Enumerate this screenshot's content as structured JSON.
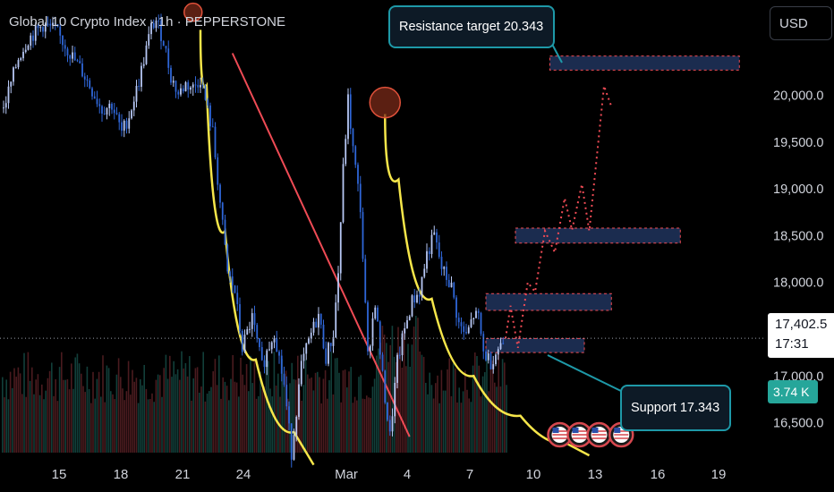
{
  "header": {
    "title": "Global 10 Crypto Index · 1h · PEPPERSTONE"
  },
  "toolbar": {
    "currency": "USD"
  },
  "price_tag": {
    "price": "17,402.5",
    "countdown": "17:31"
  },
  "volume_tag": {
    "value": "3.74 K"
  },
  "annotations": {
    "resistance": "Resistance target 20.343",
    "support": "Support 17.343"
  },
  "colors": {
    "background": "#000000",
    "candle_up": "#b7c8f5",
    "candle_down": "#2f66d8",
    "volume_up": "#123f3a",
    "volume_down": "#4a1b1f",
    "fit_curve": "#f6e64a",
    "trend_line": "#ef4b55",
    "zone_fill": "#1b2c4f",
    "zone_border": "#ef4b55",
    "callout_border": "#1e99a8",
    "volume_badge": "#26a69a"
  },
  "chart_data": {
    "type": "line",
    "title": "Global 10 Crypto Index · 1h · PEPPERSTONE",
    "x_ticks": [
      "15",
      "18",
      "21",
      "24",
      "Mar",
      "4",
      "7",
      "10",
      "13",
      "16",
      "19"
    ],
    "y_ticks": [
      "16,500.0",
      "17,000.0",
      "17,500.0",
      "18,000.0",
      "18,500.0",
      "19,000.0",
      "19,500.0",
      "20,000.0"
    ],
    "ylim": [
      16180,
      21000
    ],
    "last_price": 17402.5,
    "series": [
      {
        "values": [
          [
            0,
            19860
          ],
          [
            6,
            20400
          ],
          [
            10,
            20600
          ],
          [
            16,
            20750
          ],
          [
            21,
            20700
          ],
          [
            27,
            20450
          ],
          [
            32,
            20250
          ],
          [
            36,
            20050
          ],
          [
            40,
            19850
          ],
          [
            44,
            19900
          ],
          [
            48,
            19600
          ],
          [
            51,
            19780
          ],
          [
            55,
            20150
          ],
          [
            58,
            20500
          ],
          [
            60,
            20720
          ],
          [
            62,
            20800
          ],
          [
            65,
            20580
          ],
          [
            68,
            20200
          ],
          [
            71,
            20010
          ],
          [
            74,
            20120
          ],
          [
            77,
            20080
          ],
          [
            80,
            20180
          ],
          [
            85,
            19600
          ],
          [
            91,
            18100
          ],
          [
            94,
            17900
          ],
          [
            97,
            17300
          ],
          [
            101,
            17620
          ],
          [
            105,
            17100
          ],
          [
            110,
            17480
          ],
          [
            114,
            16900
          ],
          [
            117,
            16180
          ],
          [
            121,
            17100
          ],
          [
            125,
            17450
          ],
          [
            128,
            17650
          ],
          [
            131,
            17200
          ],
          [
            134,
            17450
          ],
          [
            136,
            18100
          ],
          [
            138,
            19200
          ],
          [
            140,
            19950
          ],
          [
            142,
            19420
          ],
          [
            145,
            18800
          ],
          [
            148,
            17200
          ],
          [
            151,
            17800
          ],
          [
            154,
            16980
          ],
          [
            157,
            16350
          ],
          [
            160,
            17150
          ],
          [
            163,
            17500
          ],
          [
            166,
            17800
          ],
          [
            169,
            17900
          ],
          [
            172,
            18300
          ],
          [
            175,
            18500
          ],
          [
            178,
            18150
          ],
          [
            182,
            17950
          ],
          [
            185,
            17550
          ],
          [
            188,
            17420
          ],
          [
            191,
            17650
          ],
          [
            193,
            17620
          ],
          [
            195,
            17250
          ],
          [
            198,
            17150
          ],
          [
            201,
            17300
          ],
          [
            204,
            17402
          ]
        ]
      }
    ],
    "projection_path": [
      [
        204,
        17402
      ],
      [
        206,
        17750
      ],
      [
        209,
        17300
      ],
      [
        213,
        18000
      ],
      [
        216,
        17900
      ],
      [
        220,
        18550
      ],
      [
        224,
        18320
      ],
      [
        228,
        18900
      ],
      [
        231,
        18560
      ],
      [
        235,
        19050
      ],
      [
        238,
        18550
      ],
      [
        244,
        20100
      ],
      [
        247,
        19880
      ]
    ],
    "zones": [
      {
        "label": "resistance target",
        "x_from": 222,
        "x_to": 299,
        "y_low": 20270,
        "y_high": 20420
      },
      {
        "x_from": 208,
        "x_to": 275,
        "y_low": 18420,
        "y_high": 18580
      },
      {
        "x_from": 196,
        "x_to": 247,
        "y_low": 17700,
        "y_high": 17880
      },
      {
        "label": "support",
        "x_from": 196,
        "x_to": 236,
        "y_low": 17250,
        "y_high": 17400
      }
    ],
    "fit_curves": [
      [
        [
          80,
          20700
        ],
        [
          85,
          19500
        ],
        [
          95,
          17600
        ],
        [
          110,
          16750
        ],
        [
          126,
          16050
        ]
      ],
      [
        [
          155,
          19800
        ],
        [
          166,
          18400
        ],
        [
          182,
          17250
        ],
        [
          200,
          16750
        ],
        [
          220,
          16400
        ],
        [
          238,
          16150
        ]
      ]
    ],
    "trend_line": [
      [
        93,
        20450
      ],
      [
        165,
        16350
      ]
    ],
    "highlighted_highs": [
      [
        77,
        20850
      ],
      [
        155,
        19980
      ]
    ],
    "event_markers": [
      226,
      234,
      242,
      251
    ]
  }
}
